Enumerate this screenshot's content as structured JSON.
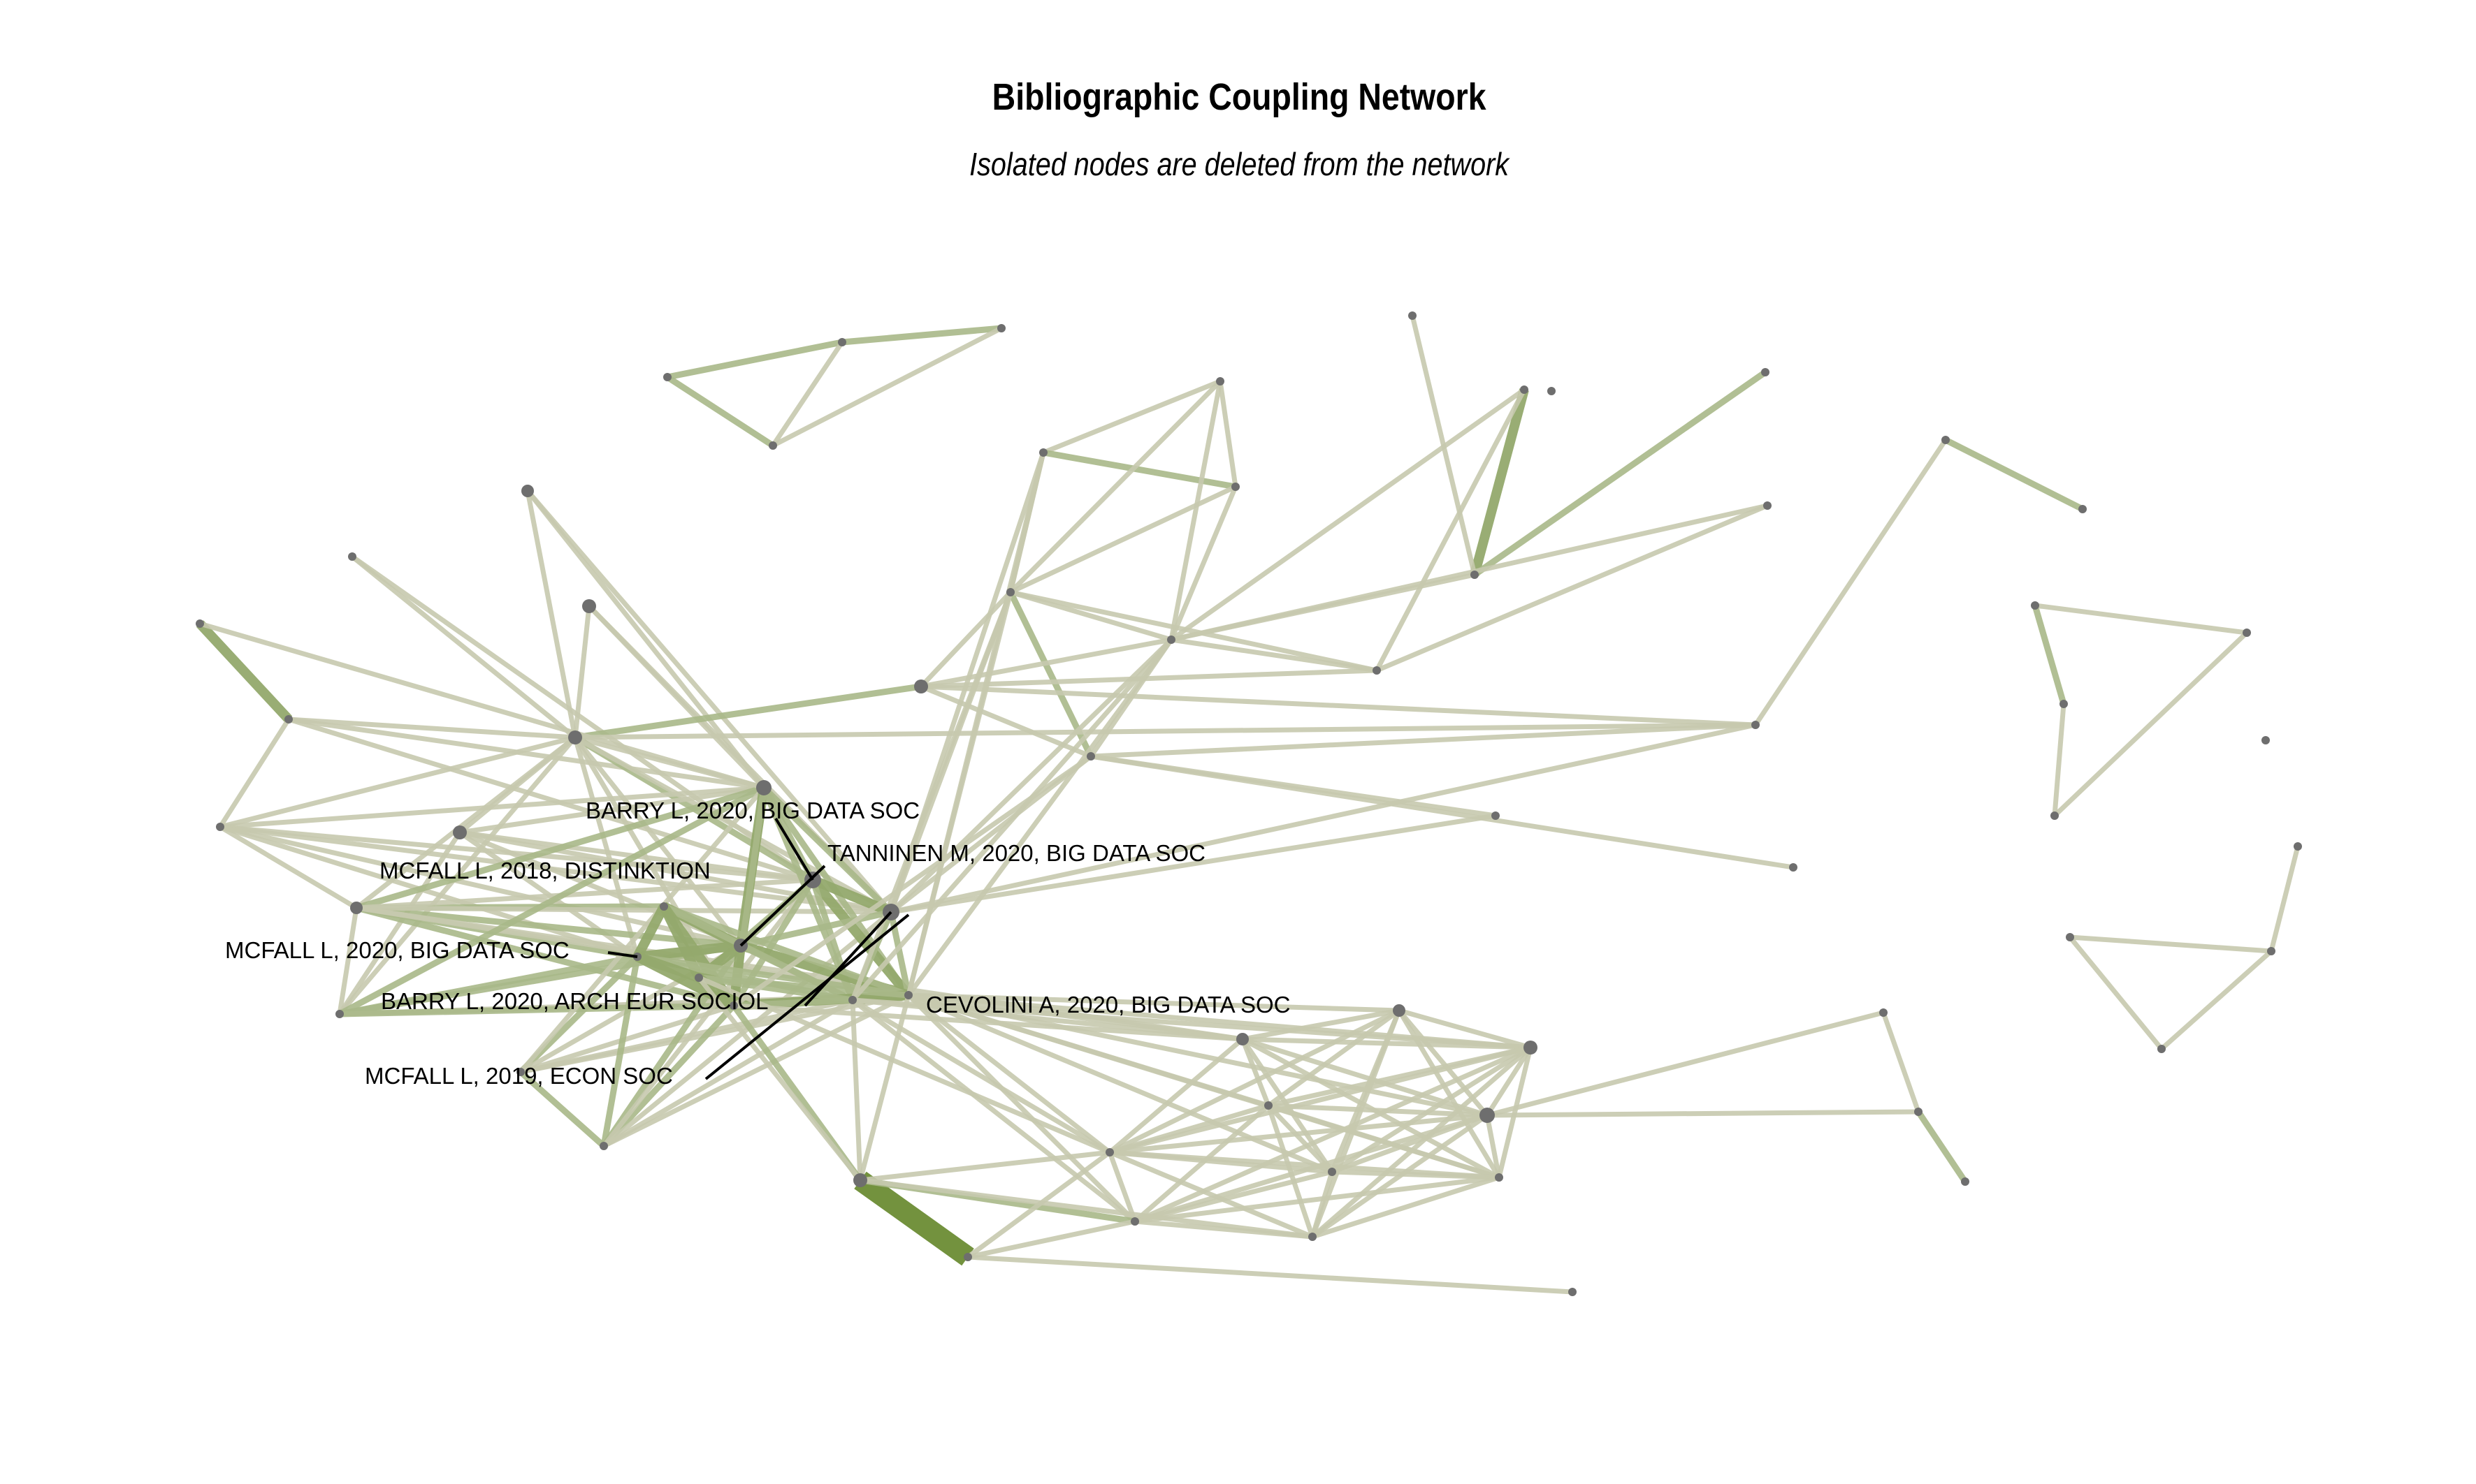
{
  "title": "Bibliographic Coupling Network",
  "subtitle": "Isolated nodes are deleted from the network",
  "colors": {
    "edge_light": "#c7c9ae",
    "edge_mid": "#a9b888",
    "edge_strong": "#6b8c34",
    "node": "#6e6e6e",
    "label": "#000000"
  },
  "labels": [
    "BARRY L, 2020, BIG DATA SOC",
    "TANNINEN M, 2020, BIG DATA SOC",
    "MCFALL L, 2018, DISTINKTION",
    "MCFALL L, 2020, BIG DATA SOC",
    "BARRY L, 2020, ARCH EUR SOCIOL",
    "CEVOLINI A, 2020, BIG DATA SOC",
    "MCFALL L, 2019, ECON SOC"
  ]
}
